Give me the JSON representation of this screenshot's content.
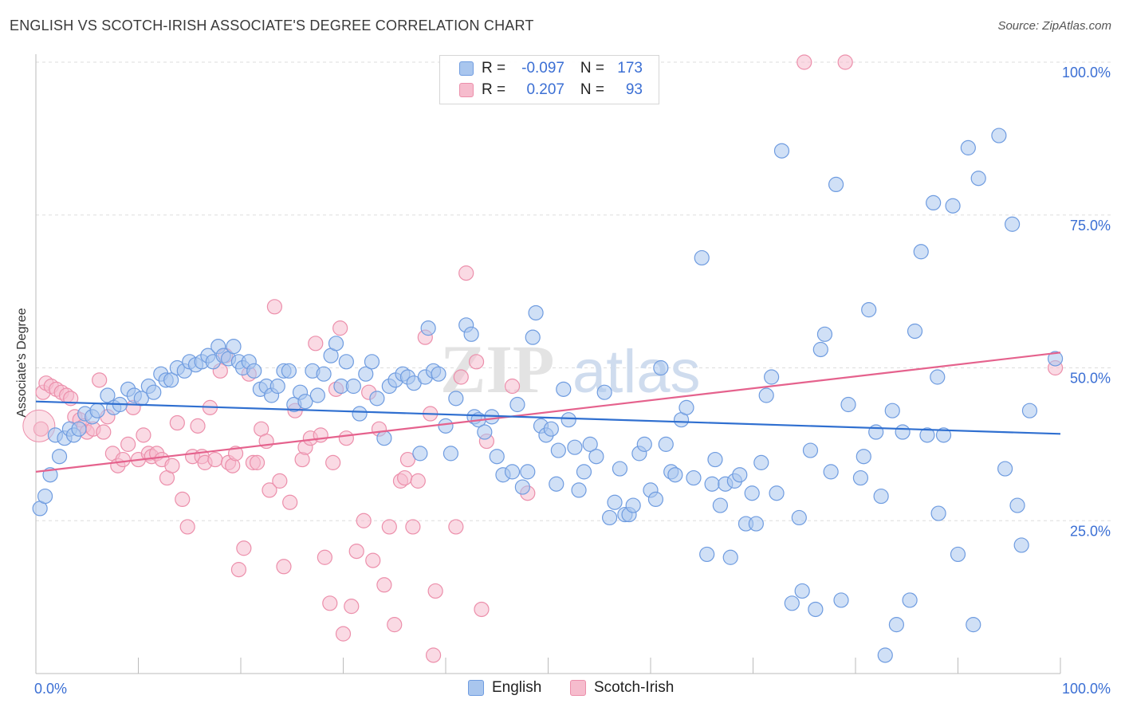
{
  "title": "ENGLISH VS SCOTCH-IRISH ASSOCIATE'S DEGREE CORRELATION CHART",
  "source": "Source: ZipAtlas.com",
  "watermark": {
    "zip": "ZIP",
    "atlas": "atlas"
  },
  "legend": {
    "rows": [
      {
        "r_label": "R =",
        "r_value": "-0.097",
        "n_label": "N =",
        "n_value": "173"
      },
      {
        "r_label": "R =",
        "r_value": "0.207",
        "n_label": "N =",
        "n_value": "93"
      }
    ]
  },
  "bottom_legend": {
    "english": "English",
    "scotch_irish": "Scotch-Irish"
  },
  "colors": {
    "english_fill": "#a9c6ee",
    "english_stroke": "#6f9ce0",
    "english_line": "#2f6fd0",
    "scotch_fill": "#f6bccd",
    "scotch_stroke": "#ec8fab",
    "scotch_line": "#e5628d",
    "tick_label": "#3b6fd4",
    "grid": "#dedede"
  },
  "chart_data": {
    "type": "scatter",
    "title": "ENGLISH VS SCOTCH-IRISH ASSOCIATE'S DEGREE CORRELATION CHART",
    "xlabel": "",
    "ylabel": "Associate's Degree",
    "xlim": [
      0,
      100
    ],
    "ylim": [
      0,
      100
    ],
    "x_tick_labels": [
      "0.0%",
      "100.0%"
    ],
    "y_ticks": [
      25,
      50,
      75,
      100
    ],
    "y_tick_labels": [
      "25.0%",
      "50.0%",
      "75.0%",
      "100.0%"
    ],
    "grid": true,
    "legend_position": "top-center",
    "series": [
      {
        "name": "English",
        "r": -0.097,
        "n": 173,
        "trend": {
          "x": [
            0,
            100
          ],
          "y": [
            44.5,
            39.2
          ]
        },
        "points": [
          [
            0.4,
            27
          ],
          [
            0.9,
            29
          ],
          [
            1.4,
            32.5
          ],
          [
            1.9,
            39
          ],
          [
            2.3,
            35.5
          ],
          [
            2.8,
            38.5
          ],
          [
            3.3,
            40
          ],
          [
            3.7,
            39
          ],
          [
            4.2,
            40
          ],
          [
            4.8,
            42.5
          ],
          [
            5.5,
            42
          ],
          [
            6.0,
            43
          ],
          [
            7.0,
            45.5
          ],
          [
            7.6,
            43.5
          ],
          [
            8.2,
            44
          ],
          [
            9.0,
            46.5
          ],
          [
            9.6,
            45.5
          ],
          [
            10.3,
            45
          ],
          [
            11.0,
            47
          ],
          [
            11.5,
            46
          ],
          [
            12.2,
            49
          ],
          [
            12.7,
            48
          ],
          [
            13.2,
            48
          ],
          [
            13.8,
            50
          ],
          [
            14.5,
            49.5
          ],
          [
            15.0,
            51
          ],
          [
            15.6,
            50.5
          ],
          [
            16.2,
            51
          ],
          [
            16.8,
            52
          ],
          [
            17.3,
            51
          ],
          [
            17.8,
            53.5
          ],
          [
            18.3,
            52
          ],
          [
            18.8,
            51.5
          ],
          [
            19.3,
            53.5
          ],
          [
            19.8,
            51
          ],
          [
            20.2,
            50
          ],
          [
            20.8,
            51
          ],
          [
            21.3,
            49.5
          ],
          [
            21.9,
            46.5
          ],
          [
            22.5,
            47
          ],
          [
            23.0,
            45.5
          ],
          [
            23.6,
            47
          ],
          [
            24.2,
            49.5
          ],
          [
            24.7,
            49.5
          ],
          [
            25.2,
            44
          ],
          [
            25.8,
            46
          ],
          [
            26.3,
            44.5
          ],
          [
            27.0,
            49.5
          ],
          [
            27.5,
            45.5
          ],
          [
            28.1,
            49
          ],
          [
            28.8,
            52
          ],
          [
            29.3,
            54
          ],
          [
            29.8,
            47
          ],
          [
            30.3,
            51
          ],
          [
            31.0,
            47
          ],
          [
            31.6,
            42.5
          ],
          [
            32.2,
            49
          ],
          [
            32.8,
            51
          ],
          [
            33.3,
            45
          ],
          [
            34.0,
            38.5
          ],
          [
            34.5,
            47
          ],
          [
            35.1,
            48
          ],
          [
            35.8,
            49
          ],
          [
            36.3,
            48.5
          ],
          [
            36.9,
            47.5
          ],
          [
            37.5,
            36
          ],
          [
            38.0,
            48.5
          ],
          [
            38.3,
            56.5
          ],
          [
            38.8,
            49.5
          ],
          [
            39.3,
            49
          ],
          [
            40.0,
            40.5
          ],
          [
            40.5,
            36
          ],
          [
            41.0,
            45
          ],
          [
            42.0,
            57
          ],
          [
            42.5,
            55.5
          ],
          [
            42.8,
            42
          ],
          [
            43.2,
            41.5
          ],
          [
            43.8,
            39.5
          ],
          [
            44.5,
            42
          ],
          [
            45.0,
            35.5
          ],
          [
            45.6,
            32.5
          ],
          [
            46.5,
            33
          ],
          [
            47.0,
            44
          ],
          [
            47.5,
            30.5
          ],
          [
            48.0,
            33
          ],
          [
            48.5,
            55
          ],
          [
            48.8,
            59
          ],
          [
            49.3,
            40.5
          ],
          [
            49.8,
            39
          ],
          [
            50.3,
            40
          ],
          [
            50.8,
            31
          ],
          [
            51.0,
            36.5
          ],
          [
            51.5,
            46.5
          ],
          [
            52.0,
            41.5
          ],
          [
            52.6,
            37
          ],
          [
            53.0,
            30
          ],
          [
            53.5,
            33
          ],
          [
            54.1,
            37.5
          ],
          [
            54.7,
            35.5
          ],
          [
            55.5,
            46
          ],
          [
            56.0,
            25.5
          ],
          [
            56.5,
            28
          ],
          [
            57.0,
            33.5
          ],
          [
            57.5,
            26
          ],
          [
            57.9,
            26
          ],
          [
            58.3,
            27.5
          ],
          [
            58.9,
            36
          ],
          [
            59.4,
            37.5
          ],
          [
            60.0,
            30
          ],
          [
            60.5,
            28.5
          ],
          [
            61.0,
            50
          ],
          [
            61.5,
            37.5
          ],
          [
            62.0,
            33
          ],
          [
            62.4,
            32.5
          ],
          [
            63.0,
            41.5
          ],
          [
            63.5,
            43.5
          ],
          [
            64.2,
            32
          ],
          [
            65.0,
            68
          ],
          [
            65.5,
            19.5
          ],
          [
            66.0,
            31
          ],
          [
            66.3,
            35
          ],
          [
            66.8,
            27.5
          ],
          [
            67.3,
            31
          ],
          [
            67.8,
            19
          ],
          [
            68.2,
            31.5
          ],
          [
            68.7,
            32.5
          ],
          [
            69.3,
            24.5
          ],
          [
            69.9,
            29.5
          ],
          [
            70.3,
            24.5
          ],
          [
            70.8,
            34.5
          ],
          [
            71.3,
            45.5
          ],
          [
            71.8,
            48.5
          ],
          [
            72.3,
            29.5
          ],
          [
            72.8,
            85.5
          ],
          [
            73.8,
            11.5
          ],
          [
            74.5,
            25.5
          ],
          [
            74.8,
            13.5
          ],
          [
            75.6,
            36.5
          ],
          [
            76.1,
            10.5
          ],
          [
            76.6,
            53
          ],
          [
            77.0,
            55.5
          ],
          [
            77.6,
            33
          ],
          [
            78.1,
            80
          ],
          [
            78.6,
            12
          ],
          [
            79.3,
            44
          ],
          [
            80.5,
            32
          ],
          [
            80.8,
            35.5
          ],
          [
            81.3,
            59.5
          ],
          [
            82.0,
            39.5
          ],
          [
            82.5,
            29
          ],
          [
            82.9,
            3
          ],
          [
            83.6,
            43
          ],
          [
            84.0,
            8
          ],
          [
            84.6,
            39.5
          ],
          [
            85.3,
            12
          ],
          [
            85.8,
            56
          ],
          [
            86.4,
            69
          ],
          [
            87.0,
            39
          ],
          [
            87.6,
            77
          ],
          [
            88.0,
            48.5
          ],
          [
            88.6,
            39
          ],
          [
            89.5,
            76.5
          ],
          [
            90.0,
            19.5
          ],
          [
            91.0,
            86
          ],
          [
            91.5,
            8
          ],
          [
            92.0,
            81
          ],
          [
            94.0,
            88
          ],
          [
            94.6,
            33.5
          ],
          [
            95.3,
            73.5
          ],
          [
            97.0,
            43
          ],
          [
            99.5,
            51.5
          ],
          [
            88.1,
            26.2
          ],
          [
            95.8,
            27.5
          ],
          [
            96.2,
            21
          ]
        ]
      },
      {
        "name": "Scotch-Irish",
        "r": 0.207,
        "n": 93,
        "trend": {
          "x": [
            0,
            100
          ],
          "y": [
            33.0,
            52.5
          ]
        },
        "points": [
          [
            0.5,
            40
          ],
          [
            0.7,
            46
          ],
          [
            1.0,
            47.5
          ],
          [
            1.5,
            47
          ],
          [
            2.0,
            46.5
          ],
          [
            2.5,
            46
          ],
          [
            3.0,
            45.5
          ],
          [
            3.4,
            45
          ],
          [
            3.8,
            42
          ],
          [
            4.3,
            41.5
          ],
          [
            4.7,
            40.5
          ],
          [
            5.0,
            39.5
          ],
          [
            5.6,
            40
          ],
          [
            6.2,
            48
          ],
          [
            6.6,
            39.5
          ],
          [
            7.0,
            42
          ],
          [
            7.5,
            36
          ],
          [
            8.0,
            34
          ],
          [
            8.5,
            35
          ],
          [
            9.0,
            37.5
          ],
          [
            9.5,
            43.5
          ],
          [
            10.0,
            35
          ],
          [
            10.5,
            39
          ],
          [
            11.0,
            36
          ],
          [
            11.3,
            35.5
          ],
          [
            11.8,
            36
          ],
          [
            12.3,
            35
          ],
          [
            12.8,
            32
          ],
          [
            13.3,
            34
          ],
          [
            13.8,
            41
          ],
          [
            14.3,
            28.5
          ],
          [
            14.8,
            24
          ],
          [
            15.3,
            35.5
          ],
          [
            15.8,
            40.5
          ],
          [
            16.2,
            35.5
          ],
          [
            16.5,
            34.5
          ],
          [
            17.0,
            43.5
          ],
          [
            17.5,
            35
          ],
          [
            18.0,
            49.5
          ],
          [
            18.5,
            52
          ],
          [
            18.8,
            34.5
          ],
          [
            19.2,
            34
          ],
          [
            19.5,
            36
          ],
          [
            19.8,
            17
          ],
          [
            20.3,
            20.5
          ],
          [
            20.8,
            49
          ],
          [
            21.2,
            34.5
          ],
          [
            21.6,
            34.5
          ],
          [
            22.0,
            40
          ],
          [
            22.5,
            38
          ],
          [
            22.8,
            30
          ],
          [
            23.3,
            60
          ],
          [
            23.8,
            31.5
          ],
          [
            24.2,
            17.5
          ],
          [
            24.8,
            28
          ],
          [
            25.3,
            43
          ],
          [
            26.0,
            35
          ],
          [
            26.3,
            37
          ],
          [
            26.8,
            38.5
          ],
          [
            27.3,
            54
          ],
          [
            27.8,
            39
          ],
          [
            28.2,
            19
          ],
          [
            28.7,
            11.5
          ],
          [
            29.0,
            34.5
          ],
          [
            29.3,
            46.5
          ],
          [
            29.7,
            56.5
          ],
          [
            30.0,
            6.5
          ],
          [
            30.3,
            38.5
          ],
          [
            30.8,
            11
          ],
          [
            31.3,
            20
          ],
          [
            32.0,
            25
          ],
          [
            32.5,
            46
          ],
          [
            32.9,
            18.5
          ],
          [
            33.5,
            40
          ],
          [
            34.0,
            14.5
          ],
          [
            34.5,
            24
          ],
          [
            35.0,
            8
          ],
          [
            35.6,
            31.5
          ],
          [
            36.0,
            32
          ],
          [
            36.3,
            35
          ],
          [
            36.8,
            24
          ],
          [
            37.3,
            31.5
          ],
          [
            38.0,
            55
          ],
          [
            38.5,
            42.5
          ],
          [
            38.8,
            3
          ],
          [
            39.0,
            13.5
          ],
          [
            41.0,
            24
          ],
          [
            41.5,
            48.5
          ],
          [
            42.0,
            65.5
          ],
          [
            43.0,
            51
          ],
          [
            43.5,
            10.5
          ],
          [
            44.0,
            38
          ],
          [
            46.5,
            47
          ],
          [
            48.0,
            29.5
          ],
          [
            75.0,
            100
          ],
          [
            79.0,
            100
          ],
          [
            99.5,
            50
          ]
        ]
      }
    ]
  }
}
